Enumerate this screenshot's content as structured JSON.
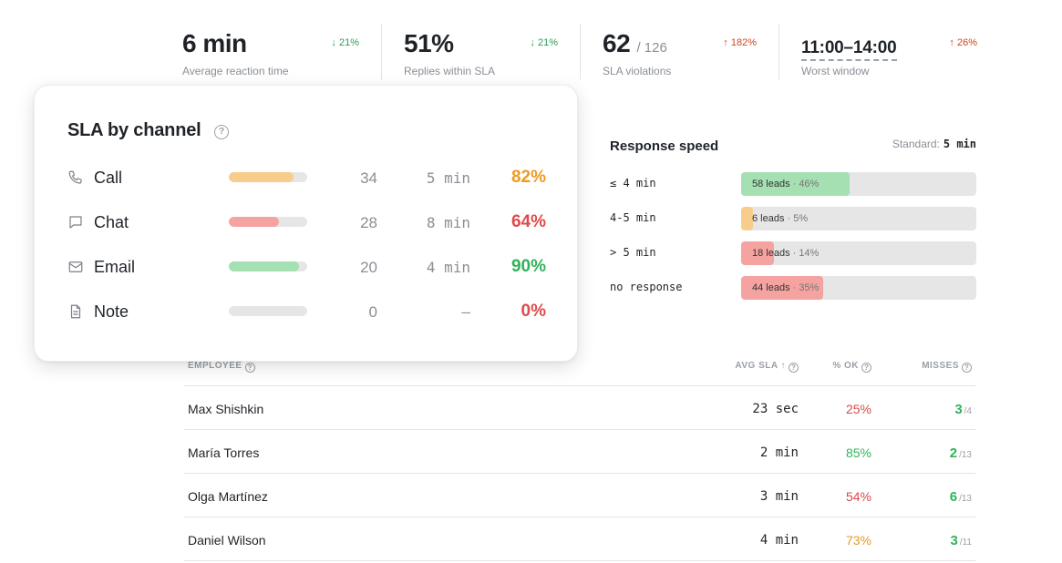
{
  "kpis": [
    {
      "value": "6 min",
      "sub": "",
      "label": "Average reaction time",
      "delta": "↓ 21%",
      "direction": "down"
    },
    {
      "value": "51%",
      "sub": "",
      "label": "Replies within SLA",
      "delta": "↓ 21%",
      "direction": "down"
    },
    {
      "value": "62",
      "sub": "/ 126",
      "label": "SLA violations",
      "delta": "↑ 182%",
      "direction": "up"
    },
    {
      "value": "11:00–14:00",
      "sub": "",
      "label": "Worst window",
      "delta": "↑ 26%",
      "direction": "up"
    }
  ],
  "response_speed": {
    "title": "Response speed",
    "standard_label": "Standard:",
    "standard_value": "5 min",
    "rows": [
      {
        "label": "≤ 4 min",
        "leads": "58 leads",
        "pct": "· 46%",
        "fill": 0.46,
        "color": "#a4e0b2"
      },
      {
        "label": "4-5 min",
        "leads": "6 leads",
        "pct": "· 5%",
        "fill": 0.05,
        "color": "#f8cd8c"
      },
      {
        "label": "> 5 min",
        "leads": "18 leads",
        "pct": "· 14%",
        "fill": 0.14,
        "color": "#f5a3a0"
      },
      {
        "label": "no response",
        "leads": "44 leads",
        "pct": "· 35%",
        "fill": 0.35,
        "color": "#f5a3a0"
      }
    ]
  },
  "table": {
    "headers": {
      "employee": "EMPLOYEE",
      "avg_sla": "AVG SLA ↑",
      "pct_ok": "% OK",
      "misses": "MISSES"
    },
    "rows": [
      {
        "name": "Max Shishkin",
        "avg": "23 sec",
        "pct": "25%",
        "pct_color": "#d94848",
        "misses": "3",
        "total": "/4"
      },
      {
        "name": "María Torres",
        "avg": "2 min",
        "pct": "85%",
        "pct_color": "#2fb35a",
        "misses": "2",
        "total": "/13"
      },
      {
        "name": "Olga Martínez",
        "avg": "3 min",
        "pct": "54%",
        "pct_color": "#d94848",
        "misses": "6",
        "total": "/13"
      },
      {
        "name": "Daniel Wilson",
        "avg": "4 min",
        "pct": "73%",
        "pct_color": "#e59a1f",
        "misses": "3",
        "total": "/11"
      }
    ]
  },
  "sla_popover": {
    "title": "SLA by channel",
    "help_glyph": "?",
    "channels": [
      {
        "icon": "phone-icon",
        "label": "Call",
        "fill": 0.82,
        "fill_color": "#f8cd8c",
        "count": "34",
        "time": "5 min",
        "pct": "82%",
        "pct_color": "#ee9a1e"
      },
      {
        "icon": "chat-icon",
        "label": "Chat",
        "fill": 0.64,
        "fill_color": "#f5a3a0",
        "count": "28",
        "time": "8 min",
        "pct": "64%",
        "pct_color": "#e04a4a"
      },
      {
        "icon": "mail-icon",
        "label": "Email",
        "fill": 0.9,
        "fill_color": "#a4e0b2",
        "count": "20",
        "time": "4 min",
        "pct": "90%",
        "pct_color": "#2fb35a"
      },
      {
        "icon": "note-icon",
        "label": "Note",
        "fill": 0,
        "fill_color": "#e6e6e6",
        "count": "0",
        "time": "–",
        "pct": "0%",
        "pct_color": "#e04a4a"
      }
    ]
  }
}
